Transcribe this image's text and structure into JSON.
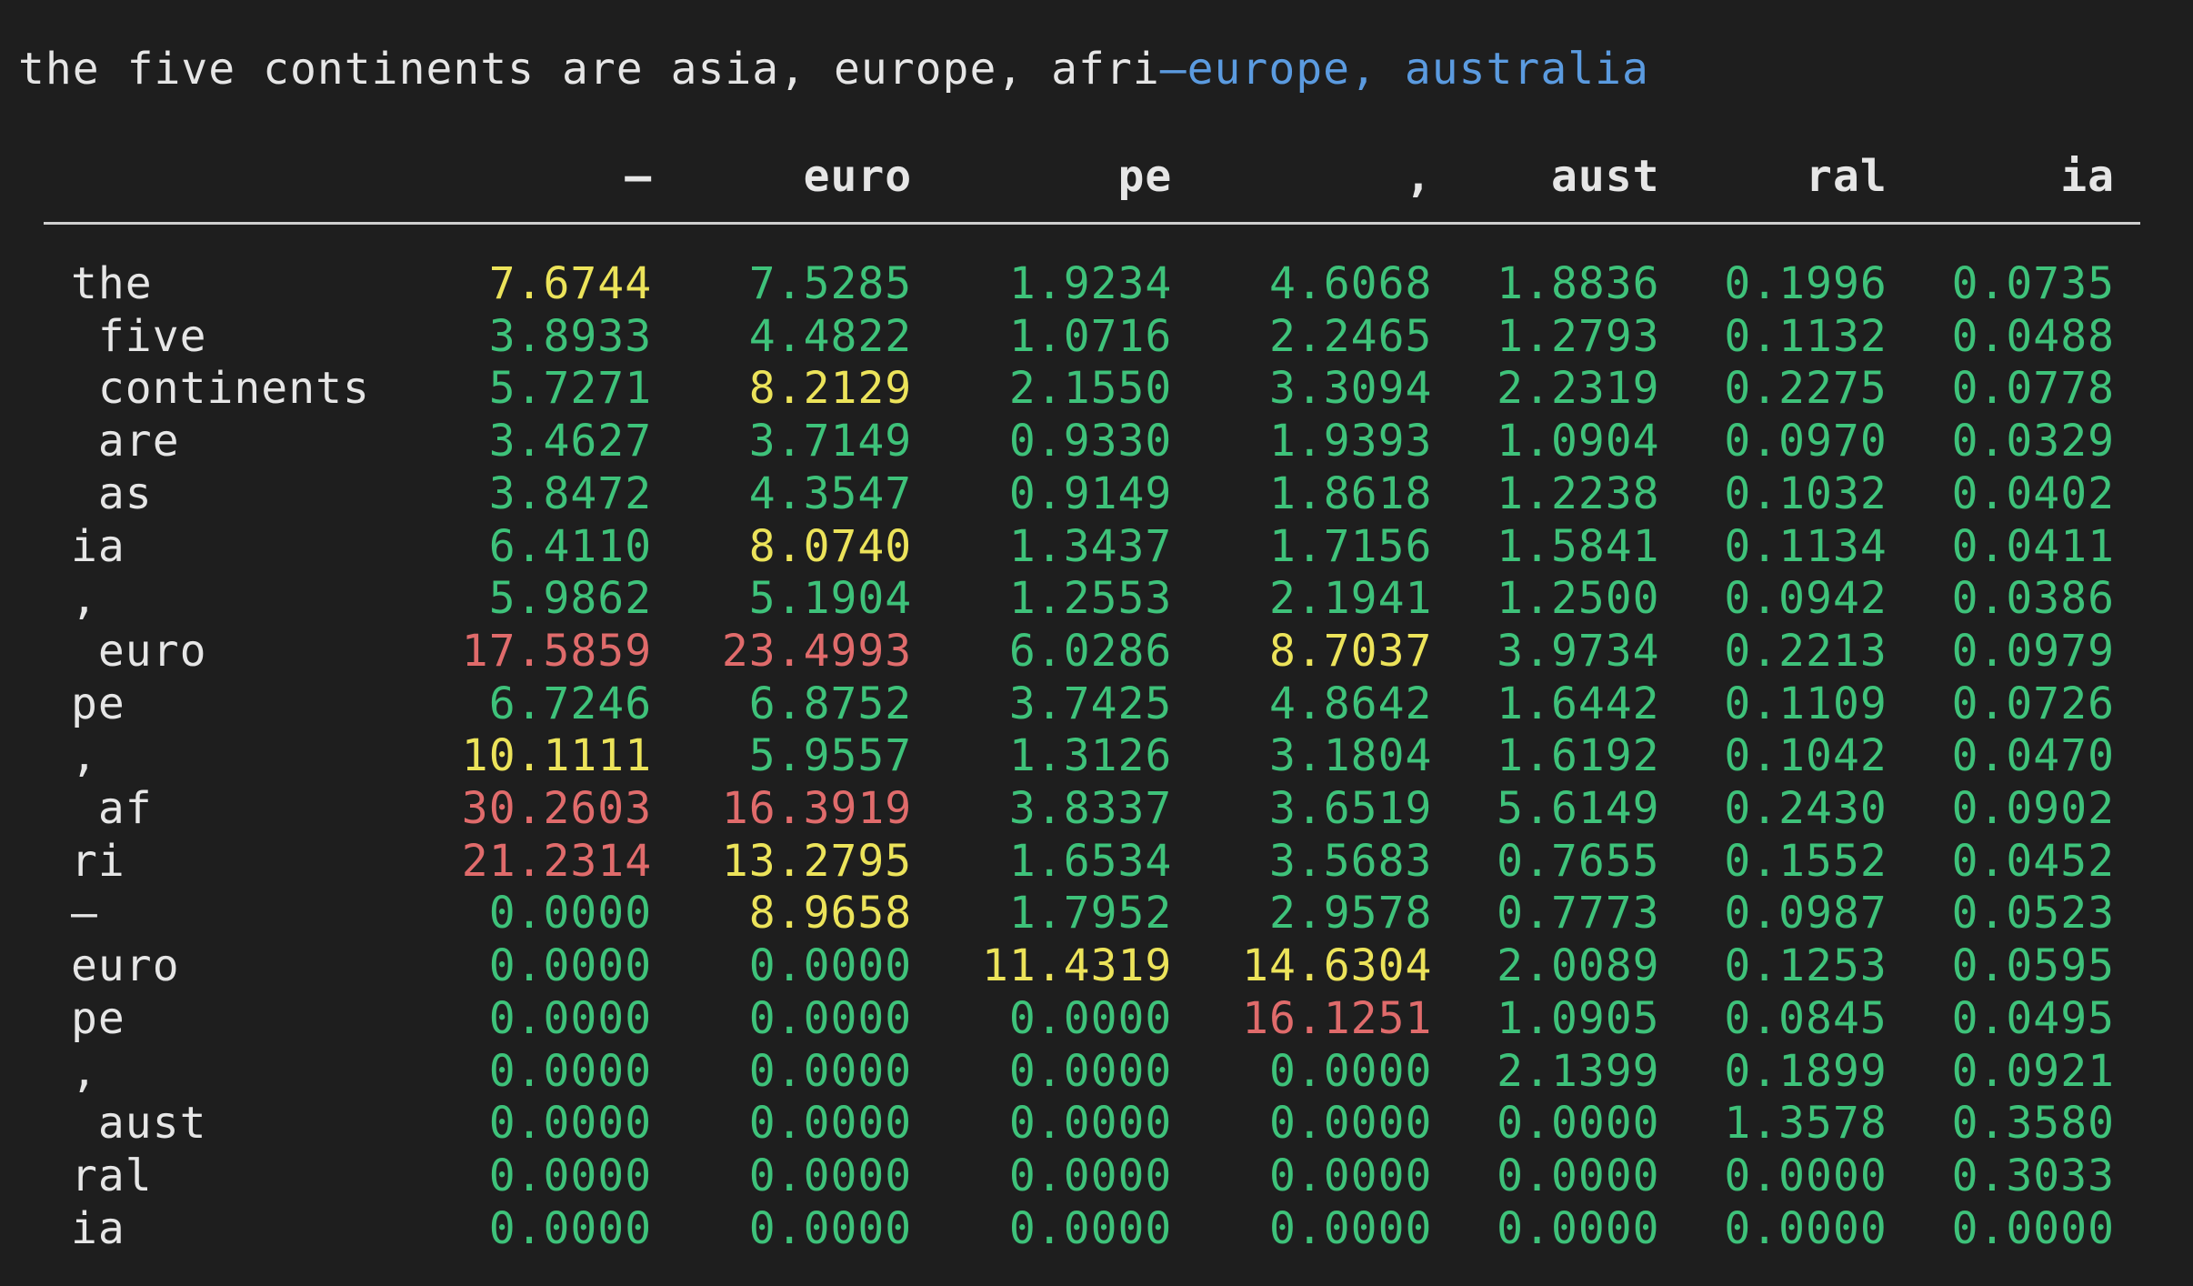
{
  "prompt": {
    "plain": "the five continents are asia, europe, afri",
    "highlighted": "—europe, australia"
  },
  "colors": {
    "background": "#1e1e1e",
    "text": "#e6e6e6",
    "highlight": "#5b9be0",
    "g": "#3ec27a",
    "y": "#ece35a",
    "r": "#e06b6b"
  },
  "columns": [
    "—",
    "euro",
    "pe",
    ",",
    "aust",
    "ral",
    "ia"
  ],
  "rows": [
    {
      "label": "the",
      "values": [
        "7.6744",
        "7.5285",
        "1.9234",
        "4.6068",
        "1.8836",
        "0.1996",
        "0.0735"
      ],
      "colors": [
        "y",
        "g",
        "g",
        "g",
        "g",
        "g",
        "g"
      ]
    },
    {
      "label": " five",
      "values": [
        "3.8933",
        "4.4822",
        "1.0716",
        "2.2465",
        "1.2793",
        "0.1132",
        "0.0488"
      ],
      "colors": [
        "g",
        "g",
        "g",
        "g",
        "g",
        "g",
        "g"
      ]
    },
    {
      "label": " continents",
      "values": [
        "5.7271",
        "8.2129",
        "2.1550",
        "3.3094",
        "2.2319",
        "0.2275",
        "0.0778"
      ],
      "colors": [
        "g",
        "y",
        "g",
        "g",
        "g",
        "g",
        "g"
      ]
    },
    {
      "label": " are",
      "values": [
        "3.4627",
        "3.7149",
        "0.9330",
        "1.9393",
        "1.0904",
        "0.0970",
        "0.0329"
      ],
      "colors": [
        "g",
        "g",
        "g",
        "g",
        "g",
        "g",
        "g"
      ]
    },
    {
      "label": " as",
      "values": [
        "3.8472",
        "4.3547",
        "0.9149",
        "1.8618",
        "1.2238",
        "0.1032",
        "0.0402"
      ],
      "colors": [
        "g",
        "g",
        "g",
        "g",
        "g",
        "g",
        "g"
      ]
    },
    {
      "label": "ia",
      "values": [
        "6.4110",
        "8.0740",
        "1.3437",
        "1.7156",
        "1.5841",
        "0.1134",
        "0.0411"
      ],
      "colors": [
        "g",
        "y",
        "g",
        "g",
        "g",
        "g",
        "g"
      ]
    },
    {
      "label": ",",
      "values": [
        "5.9862",
        "5.1904",
        "1.2553",
        "2.1941",
        "1.2500",
        "0.0942",
        "0.0386"
      ],
      "colors": [
        "g",
        "g",
        "g",
        "g",
        "g",
        "g",
        "g"
      ]
    },
    {
      "label": " euro",
      "values": [
        "17.5859",
        "23.4993",
        "6.0286",
        "8.7037",
        "3.9734",
        "0.2213",
        "0.0979"
      ],
      "colors": [
        "r",
        "r",
        "g",
        "y",
        "g",
        "g",
        "g"
      ]
    },
    {
      "label": "pe",
      "values": [
        "6.7246",
        "6.8752",
        "3.7425",
        "4.8642",
        "1.6442",
        "0.1109",
        "0.0726"
      ],
      "colors": [
        "g",
        "g",
        "g",
        "g",
        "g",
        "g",
        "g"
      ]
    },
    {
      "label": ",",
      "values": [
        "10.1111",
        "5.9557",
        "1.3126",
        "3.1804",
        "1.6192",
        "0.1042",
        "0.0470"
      ],
      "colors": [
        "y",
        "g",
        "g",
        "g",
        "g",
        "g",
        "g"
      ]
    },
    {
      "label": " af",
      "values": [
        "30.2603",
        "16.3919",
        "3.8337",
        "3.6519",
        "5.6149",
        "0.2430",
        "0.0902"
      ],
      "colors": [
        "r",
        "r",
        "g",
        "g",
        "g",
        "g",
        "g"
      ]
    },
    {
      "label": "ri",
      "values": [
        "21.2314",
        "13.2795",
        "1.6534",
        "3.5683",
        "0.7655",
        "0.1552",
        "0.0452"
      ],
      "colors": [
        "r",
        "y",
        "g",
        "g",
        "g",
        "g",
        "g"
      ]
    },
    {
      "label": "—",
      "values": [
        "0.0000",
        "8.9658",
        "1.7952",
        "2.9578",
        "0.7773",
        "0.0987",
        "0.0523"
      ],
      "colors": [
        "g",
        "y",
        "g",
        "g",
        "g",
        "g",
        "g"
      ]
    },
    {
      "label": "euro",
      "values": [
        "0.0000",
        "0.0000",
        "11.4319",
        "14.6304",
        "2.0089",
        "0.1253",
        "0.0595"
      ],
      "colors": [
        "g",
        "g",
        "y",
        "y",
        "g",
        "g",
        "g"
      ]
    },
    {
      "label": "pe",
      "values": [
        "0.0000",
        "0.0000",
        "0.0000",
        "16.1251",
        "1.0905",
        "0.0845",
        "0.0495"
      ],
      "colors": [
        "g",
        "g",
        "g",
        "r",
        "g",
        "g",
        "g"
      ]
    },
    {
      "label": ",",
      "values": [
        "0.0000",
        "0.0000",
        "0.0000",
        "0.0000",
        "2.1399",
        "0.1899",
        "0.0921"
      ],
      "colors": [
        "g",
        "g",
        "g",
        "g",
        "g",
        "g",
        "g"
      ]
    },
    {
      "label": " aust",
      "values": [
        "0.0000",
        "0.0000",
        "0.0000",
        "0.0000",
        "0.0000",
        "1.3578",
        "0.3580"
      ],
      "colors": [
        "g",
        "g",
        "g",
        "g",
        "g",
        "g",
        "g"
      ]
    },
    {
      "label": "ral",
      "values": [
        "0.0000",
        "0.0000",
        "0.0000",
        "0.0000",
        "0.0000",
        "0.0000",
        "0.3033"
      ],
      "colors": [
        "g",
        "g",
        "g",
        "g",
        "g",
        "g",
        "g"
      ]
    },
    {
      "label": "ia",
      "values": [
        "0.0000",
        "0.0000",
        "0.0000",
        "0.0000",
        "0.0000",
        "0.0000",
        "0.0000"
      ],
      "colors": [
        "g",
        "g",
        "g",
        "g",
        "g",
        "g",
        "g"
      ]
    }
  ]
}
